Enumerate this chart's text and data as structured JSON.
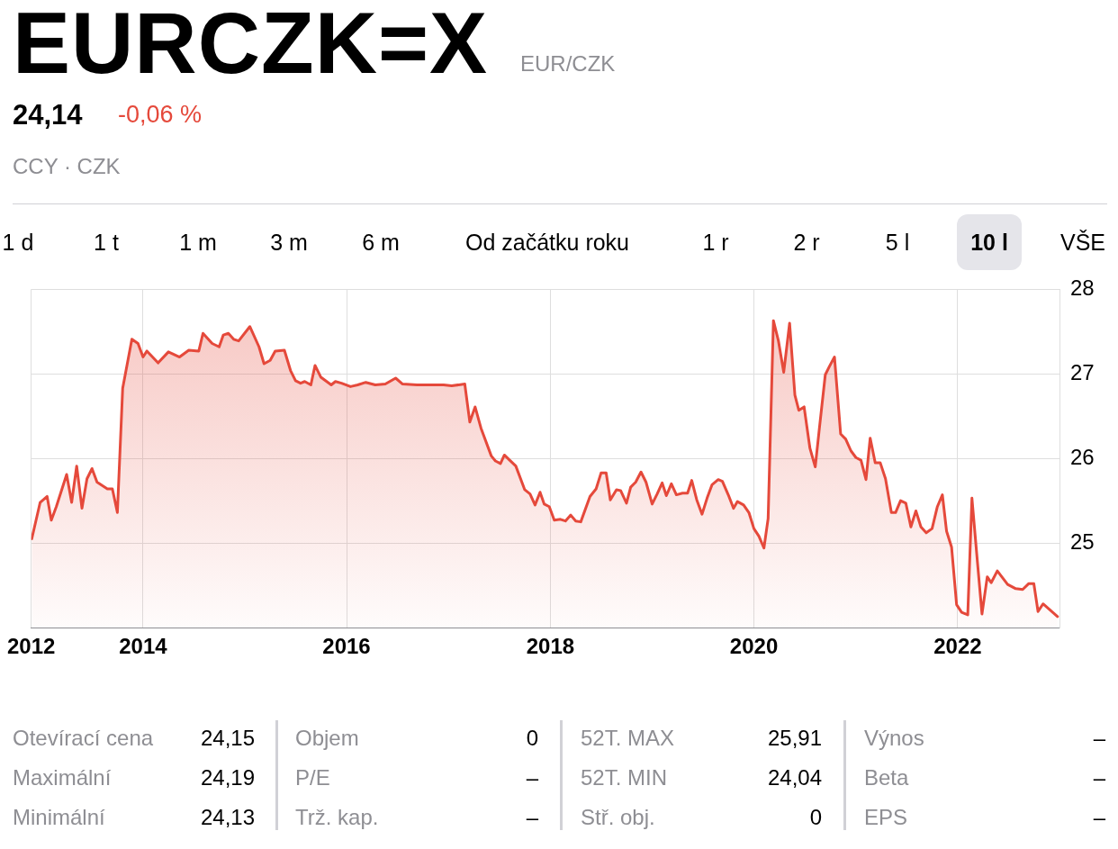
{
  "chart_data": {
    "type": "area",
    "title": "EURCZK=X",
    "subtitle": "EUR/CZK",
    "annotations": [
      "24,14",
      "-0,06 %",
      "CCY · CZK",
      "1 d",
      "1 t",
      "1 m",
      "3 m",
      "6 m",
      "Od začátku roku",
      "1 r",
      "2 r",
      "5 l",
      "10 l",
      "VŠE",
      "Otevírací cena",
      "24,15",
      "Objem",
      "0",
      "52T. MAX",
      "25,91",
      "Výnos",
      "–",
      "Maximální",
      "24,19",
      "P/E",
      "–",
      "52T. MIN",
      "24,04",
      "Beta",
      "–",
      "Minimální",
      "24,13",
      "Trž. kap.",
      "–",
      "Stř. obj.",
      "0",
      "EPS",
      "–"
    ],
    "x": [
      "2012-11-28",
      "2012-12-28",
      "2013-01-22",
      "2013-02-06",
      "2013-02-24",
      "2013-04-02",
      "2013-04-20",
      "2013-05-08",
      "2013-05-27",
      "2013-06-14",
      "2013-07-02",
      "2013-07-20",
      "2013-08-26",
      "2013-09-13",
      "2013-10-01",
      "2013-10-20",
      "2013-11-22",
      "2013-12-14",
      "2014-01-01",
      "2014-01-15",
      "2014-02-24",
      "2014-04-02",
      "2014-05-12",
      "2014-06-14",
      "2014-07-20",
      "2014-08-04",
      "2014-09-06",
      "2014-10-01",
      "2014-10-16",
      "2014-11-03",
      "2014-11-22",
      "2014-12-10",
      "2015-01-19",
      "2015-02-21",
      "2015-03-11",
      "2015-04-02",
      "2015-04-20",
      "2015-05-23",
      "2015-06-14",
      "2015-07-02",
      "2015-07-20",
      "2015-08-04",
      "2015-08-26",
      "2015-09-10",
      "2015-10-01",
      "2015-11-07",
      "2015-11-22",
      "2015-12-14",
      "2016-01-15",
      "2016-02-10",
      "2016-03-10",
      "2016-04-13",
      "2016-05-19",
      "2016-06-25",
      "2016-07-20",
      "2016-09-10",
      "2016-12-14",
      "2017-01-12",
      "2017-02-28",
      "2017-03-18",
      "2017-04-06",
      "2017-04-27",
      "2017-06-03",
      "2017-06-18",
      "2017-07-06",
      "2017-07-20",
      "2017-08-08",
      "2017-08-30",
      "2017-10-01",
      "2017-10-20",
      "2017-11-07",
      "2017-11-25",
      "2017-12-10",
      "2017-12-28",
      "2018-01-15",
      "2018-02-06",
      "2018-02-24",
      "2018-03-15",
      "2018-04-02",
      "2018-04-20",
      "2018-05-23",
      "2018-06-14",
      "2018-07-02",
      "2018-07-20",
      "2018-08-04",
      "2018-08-26",
      "2018-09-10",
      "2018-10-01",
      "2018-10-16",
      "2018-11-03",
      "2018-11-22",
      "2018-12-10",
      "2019-01-01",
      "2019-01-19",
      "2019-02-06",
      "2019-02-21",
      "2019-03-11",
      "2019-03-29",
      "2019-04-20",
      "2019-05-08",
      "2019-05-23",
      "2019-06-10",
      "2019-06-29",
      "2019-07-17",
      "2019-08-04",
      "2019-08-26",
      "2019-09-10",
      "2019-10-01",
      "2019-10-20",
      "2019-11-03",
      "2019-11-25",
      "2019-12-14",
      "2020-01-01",
      "2020-01-19",
      "2020-02-06",
      "2020-02-21",
      "2020-03-11",
      "2020-03-29",
      "2020-04-17",
      "2020-05-08",
      "2020-05-27",
      "2020-06-10",
      "2020-06-29",
      "2020-07-20",
      "2020-08-08",
      "2020-08-22",
      "2020-09-13",
      "2020-09-28",
      "2020-10-16",
      "2020-11-07",
      "2020-11-25",
      "2020-12-14",
      "2021-01-01",
      "2021-01-19",
      "2021-02-06",
      "2021-02-21",
      "2021-03-11",
      "2021-03-29",
      "2021-04-17",
      "2021-05-08",
      "2021-05-23",
      "2021-06-10",
      "2021-06-29",
      "2021-07-17",
      "2021-08-04",
      "2021-08-22",
      "2021-09-10",
      "2021-10-01",
      "2021-10-20",
      "2021-11-07",
      "2021-11-22",
      "2021-12-10",
      "2021-12-28",
      "2022-01-15",
      "2022-02-06",
      "2022-02-21",
      "2022-03-11",
      "2022-03-29",
      "2022-04-17",
      "2022-05-01",
      "2022-05-23",
      "2022-06-29",
      "2022-07-28",
      "2022-08-22",
      "2022-09-13",
      "2022-10-01",
      "2022-10-16",
      "2022-11-03",
      "2022-12-25"
    ],
    "values": [
      25.05,
      25.48,
      25.55,
      25.27,
      25.43,
      25.81,
      25.48,
      25.91,
      25.41,
      25.76,
      25.88,
      25.72,
      25.64,
      25.64,
      25.36,
      26.83,
      27.41,
      27.36,
      27.2,
      27.27,
      27.13,
      27.26,
      27.2,
      27.28,
      27.27,
      27.48,
      27.36,
      27.32,
      27.46,
      27.48,
      27.41,
      27.39,
      27.56,
      27.32,
      27.12,
      27.16,
      27.27,
      27.28,
      27.04,
      26.92,
      26.89,
      26.91,
      26.87,
      27.1,
      26.96,
      26.87,
      26.91,
      26.89,
      26.85,
      26.87,
      26.9,
      26.87,
      26.88,
      26.95,
      26.88,
      26.87,
      26.87,
      26.86,
      26.88,
      26.43,
      26.61,
      26.36,
      26.03,
      25.97,
      25.94,
      26.04,
      25.98,
      25.91,
      25.63,
      25.58,
      25.45,
      25.6,
      25.46,
      25.43,
      25.27,
      25.28,
      25.26,
      25.33,
      25.26,
      25.25,
      25.55,
      25.64,
      25.83,
      25.83,
      25.51,
      25.63,
      25.62,
      25.47,
      25.66,
      25.72,
      25.84,
      25.72,
      25.46,
      25.58,
      25.71,
      25.56,
      25.7,
      25.57,
      25.59,
      25.59,
      25.74,
      25.51,
      25.34,
      25.53,
      25.69,
      25.75,
      25.73,
      25.57,
      25.41,
      25.49,
      25.45,
      25.36,
      25.17,
      25.08,
      24.94,
      25.29,
      27.63,
      27.39,
      27.02,
      27.6,
      26.75,
      26.57,
      26.61,
      26.12,
      25.9,
      26.33,
      26.99,
      27.09,
      27.2,
      26.29,
      26.23,
      26.09,
      26.01,
      25.98,
      25.75,
      26.24,
      25.95,
      25.95,
      25.76,
      25.36,
      25.36,
      25.5,
      25.47,
      25.19,
      25.38,
      25.19,
      25.12,
      25.17,
      25.43,
      25.57,
      25.14,
      24.95,
      24.27,
      24.18,
      24.15,
      25.53,
      24.84,
      24.16,
      24.6,
      24.53,
      24.67,
      24.51,
      24.46,
      24.45,
      24.52,
      24.52,
      24.19,
      24.28,
      24.13
    ],
    "color": "#e5493b",
    "xlim": [
      "2012-11-26",
      "2023-01-01"
    ],
    "xticks": [
      {
        "value": "2012-11-26",
        "label": "2012"
      },
      "2014",
      "2016",
      "2018",
      "2020",
      "2022"
    ],
    "ylim": [
      24,
      28
    ],
    "yticks": [
      25,
      26,
      27,
      28
    ],
    "grid": true
  }
}
